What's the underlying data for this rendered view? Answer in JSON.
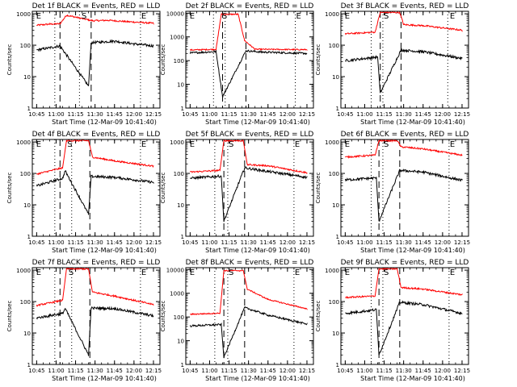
{
  "chart_data": [
    {
      "type": "line",
      "title": "Det 1f BLACK = Events, RED = LLD",
      "ylabel": "Counts/sec",
      "xlabel": "Start Time (12-Mar-09 10:41:40)",
      "x_ticks": [
        "10:45",
        "11:00",
        "11:15",
        "11:30",
        "11:45",
        "12:00",
        "12:15"
      ],
      "y_ticks": [
        "1",
        "10",
        "100",
        "1000"
      ],
      "ylim": [
        1,
        1200
      ],
      "yscale": "log",
      "markers": {
        "E1": "E",
        "S": "S",
        "E2": "E"
      },
      "marker_times": [
        "10:44",
        "11:19",
        "12:05"
      ],
      "dashed_times": [
        "11:03",
        "11:27"
      ],
      "dotted_times": [
        "10:59",
        "11:18",
        "12:05"
      ],
      "series": [
        {
          "color": "#ff0000",
          "values": [
            {
              "t": "10:45",
              "v": 430
            },
            {
              "t": "10:55",
              "v": 470
            },
            {
              "t": "11:03",
              "v": 480
            },
            {
              "t": "11:08",
              "v": 900
            },
            {
              "t": "11:28",
              "v": 600
            },
            {
              "t": "11:40",
              "v": 620
            },
            {
              "t": "11:55",
              "v": 560
            },
            {
              "t": "12:15",
              "v": 500
            }
          ]
        },
        {
          "color": "#000000",
          "values": [
            {
              "t": "10:45",
              "v": 70
            },
            {
              "t": "11:00",
              "v": 90
            },
            {
              "t": "11:03",
              "v": 95
            },
            {
              "t": "11:25",
              "v": 5
            },
            {
              "t": "11:27",
              "v": 120
            },
            {
              "t": "11:45",
              "v": 135
            },
            {
              "t": "12:00",
              "v": 110
            },
            {
              "t": "12:15",
              "v": 95
            }
          ]
        }
      ]
    },
    {
      "type": "line",
      "title": "Det 2f BLACK = Events, RED = LLD",
      "ylabel": "Counts/sec",
      "xlabel": "Start Time (12-Mar-09 10:41:40)",
      "x_ticks": [
        "10:45",
        "11:00",
        "11:15",
        "11:30",
        "11:45",
        "12:00",
        "12:15"
      ],
      "y_ticks": [
        "1",
        "10",
        "100",
        "1000",
        "10000"
      ],
      "ylim": [
        1,
        12000
      ],
      "yscale": "log",
      "markers": {
        "E1": "E",
        "S": "S",
        "E2": "E"
      },
      "marker_times": [
        "10:44",
        "11:09",
        "12:06"
      ],
      "dashed_times": [
        "11:10",
        "11:28"
      ],
      "dotted_times": [
        "11:03",
        "11:12",
        "12:06"
      ],
      "series": [
        {
          "color": "#ff0000",
          "values": [
            {
              "t": "10:45",
              "v": 280
            },
            {
              "t": "11:05",
              "v": 300
            },
            {
              "t": "11:09",
              "v": 9000
            },
            {
              "t": "11:22",
              "v": 9000
            },
            {
              "t": "11:27",
              "v": 700
            },
            {
              "t": "11:35",
              "v": 300
            },
            {
              "t": "12:15",
              "v": 290
            }
          ]
        },
        {
          "color": "#000000",
          "values": [
            {
              "t": "10:45",
              "v": 210
            },
            {
              "t": "11:05",
              "v": 240
            },
            {
              "t": "11:10",
              "v": 3
            },
            {
              "t": "11:28",
              "v": 260
            },
            {
              "t": "11:40",
              "v": 230
            },
            {
              "t": "12:15",
              "v": 200
            }
          ]
        }
      ]
    },
    {
      "type": "line",
      "title": "Det 3f BLACK = Events, RED = LLD",
      "ylabel": "Counts/sec",
      "xlabel": "Start Time (12-Mar-09 10:41:40)",
      "x_ticks": [
        "10:45",
        "11:00",
        "11:15",
        "11:30",
        "11:45",
        "12:00",
        "12:15"
      ],
      "y_ticks": [
        "1",
        "10",
        "100",
        "1000"
      ],
      "ylim": [
        1,
        1200
      ],
      "yscale": "log",
      "markers": {
        "E1": "E",
        "S": "S",
        "E2": "E"
      },
      "marker_times": [
        "10:44",
        "11:14",
        "12:05"
      ],
      "dashed_times": [
        "11:12",
        "11:28"
      ],
      "dotted_times": [
        "11:05",
        "11:14",
        "12:04"
      ],
      "series": [
        {
          "color": "#ff0000",
          "values": [
            {
              "t": "10:45",
              "v": 230
            },
            {
              "t": "11:08",
              "v": 260
            },
            {
              "t": "11:12",
              "v": 1100
            },
            {
              "t": "11:27",
              "v": 1100
            },
            {
              "t": "11:30",
              "v": 450
            },
            {
              "t": "11:45",
              "v": 420
            },
            {
              "t": "12:15",
              "v": 300
            }
          ]
        },
        {
          "color": "#000000",
          "values": [
            {
              "t": "10:45",
              "v": 32
            },
            {
              "t": "11:10",
              "v": 42
            },
            {
              "t": "11:12",
              "v": 3
            },
            {
              "t": "11:28",
              "v": 70
            },
            {
              "t": "11:45",
              "v": 62
            },
            {
              "t": "12:15",
              "v": 38
            }
          ]
        }
      ]
    },
    {
      "type": "line",
      "title": "Det 4f BLACK = Events, RED = LLD",
      "ylabel": "Counts/sec",
      "xlabel": "Start Time (12-Mar-09 10:41:40)",
      "x_ticks": [
        "10:45",
        "11:00",
        "11:15",
        "11:30",
        "11:45",
        "12:00",
        "12:15"
      ],
      "y_ticks": [
        "1",
        "10",
        "100",
        "1000"
      ],
      "ylim": [
        1,
        1200
      ],
      "yscale": "log",
      "markers": {
        "E1": "E",
        "S": "S",
        "E2": "E"
      },
      "marker_times": [
        "10:44",
        "11:08",
        "12:05"
      ],
      "dashed_times": [
        "11:03",
        "11:26"
      ],
      "dotted_times": [
        "10:59",
        "11:12",
        "12:05"
      ],
      "series": [
        {
          "color": "#ff0000",
          "values": [
            {
              "t": "10:45",
              "v": 95
            },
            {
              "t": "11:05",
              "v": 150
            },
            {
              "t": "11:08",
              "v": 1100
            },
            {
              "t": "11:25",
              "v": 1100
            },
            {
              "t": "11:28",
              "v": 330
            },
            {
              "t": "11:45",
              "v": 250
            },
            {
              "t": "12:15",
              "v": 170
            }
          ]
        },
        {
          "color": "#000000",
          "values": [
            {
              "t": "10:45",
              "v": 40
            },
            {
              "t": "11:05",
              "v": 70
            },
            {
              "t": "11:07",
              "v": 120
            },
            {
              "t": "11:25",
              "v": 5
            },
            {
              "t": "11:27",
              "v": 80
            },
            {
              "t": "11:45",
              "v": 75
            },
            {
              "t": "12:15",
              "v": 52
            }
          ]
        }
      ]
    },
    {
      "type": "line",
      "title": "Det 5f BLACK = Events, RED = LLD",
      "ylabel": "Counts/sec",
      "xlabel": "Start Time (12-Mar-09 10:41:40)",
      "x_ticks": [
        "10:45",
        "11:00",
        "11:15",
        "11:30",
        "11:45",
        "12:00",
        "12:15"
      ],
      "y_ticks": [
        "1",
        "10",
        "100",
        "1000"
      ],
      "ylim": [
        1,
        1200
      ],
      "yscale": "log",
      "markers": {
        "E1": "E",
        "S": "S",
        "E2": "E"
      },
      "marker_times": [
        "10:44",
        "11:14",
        "12:05"
      ],
      "dashed_times": [
        "11:11",
        "11:27"
      ],
      "dotted_times": [
        "11:04",
        "11:14",
        "12:05"
      ],
      "series": [
        {
          "color": "#ff0000",
          "values": [
            {
              "t": "10:45",
              "v": 110
            },
            {
              "t": "11:08",
              "v": 125
            },
            {
              "t": "11:11",
              "v": 1100
            },
            {
              "t": "11:26",
              "v": 1100
            },
            {
              "t": "11:29",
              "v": 190
            },
            {
              "t": "11:45",
              "v": 175
            },
            {
              "t": "12:15",
              "v": 105
            }
          ]
        },
        {
          "color": "#000000",
          "values": [
            {
              "t": "10:45",
              "v": 70
            },
            {
              "t": "11:09",
              "v": 82
            },
            {
              "t": "11:11",
              "v": 3
            },
            {
              "t": "11:27",
              "v": 150
            },
            {
              "t": "11:45",
              "v": 115
            },
            {
              "t": "12:15",
              "v": 75
            }
          ]
        }
      ]
    },
    {
      "type": "line",
      "title": "Det 6f BLACK = Events, RED = LLD",
      "ylabel": "Counts/sec",
      "xlabel": "Start Time (12-Mar-09 10:41:40)",
      "x_ticks": [
        "10:45",
        "11:00",
        "11:15",
        "11:30",
        "11:45",
        "12:00",
        "12:15"
      ],
      "y_ticks": [
        "1",
        "10",
        "100",
        "1000"
      ],
      "ylim": [
        1,
        1200
      ],
      "yscale": "log",
      "markers": {
        "E1": "E",
        "S": "S",
        "E2": "E"
      },
      "marker_times": [
        "10:44",
        "11:14",
        "12:05"
      ],
      "dashed_times": [
        "11:11",
        "11:27"
      ],
      "dotted_times": [
        "11:05",
        "11:14",
        "12:05"
      ],
      "series": [
        {
          "color": "#ff0000",
          "values": [
            {
              "t": "10:45",
              "v": 330
            },
            {
              "t": "11:08",
              "v": 380
            },
            {
              "t": "11:11",
              "v": 1100
            },
            {
              "t": "11:25",
              "v": 1100
            },
            {
              "t": "11:28",
              "v": 700
            },
            {
              "t": "11:45",
              "v": 600
            },
            {
              "t": "12:15",
              "v": 380
            }
          ]
        },
        {
          "color": "#000000",
          "values": [
            {
              "t": "10:45",
              "v": 62
            },
            {
              "t": "11:09",
              "v": 72
            },
            {
              "t": "11:11",
              "v": 3
            },
            {
              "t": "11:27",
              "v": 125
            },
            {
              "t": "11:45",
              "v": 110
            },
            {
              "t": "12:15",
              "v": 60
            }
          ]
        }
      ]
    },
    {
      "type": "line",
      "title": "Det 7f BLACK = Events, RED = LLD",
      "ylabel": "Counts/sec",
      "xlabel": "Start Time (12-Mar-09 10:41:40)",
      "x_ticks": [
        "10:45",
        "11:00",
        "11:15",
        "11:30",
        "11:45",
        "12:00",
        "12:15"
      ],
      "y_ticks": [
        "1",
        "10",
        "100",
        "1000"
      ],
      "ylim": [
        1,
        1200
      ],
      "yscale": "log",
      "markers": {
        "E1": "E",
        "S": "S",
        "E2": "E"
      },
      "marker_times": [
        "10:44",
        "11:09",
        "12:05"
      ],
      "dashed_times": [
        "11:03",
        "11:26"
      ],
      "dotted_times": [
        "10:59",
        "11:12",
        "12:05"
      ],
      "series": [
        {
          "color": "#ff0000",
          "values": [
            {
              "t": "10:45",
              "v": 75
            },
            {
              "t": "11:05",
              "v": 110
            },
            {
              "t": "11:08",
              "v": 1100
            },
            {
              "t": "11:25",
              "v": 1100
            },
            {
              "t": "11:28",
              "v": 200
            },
            {
              "t": "11:45",
              "v": 150
            },
            {
              "t": "12:15",
              "v": 80
            }
          ]
        },
        {
          "color": "#000000",
          "values": [
            {
              "t": "10:45",
              "v": 30
            },
            {
              "t": "11:05",
              "v": 42
            },
            {
              "t": "11:07",
              "v": 60
            },
            {
              "t": "11:25",
              "v": 2
            },
            {
              "t": "11:27",
              "v": 62
            },
            {
              "t": "11:45",
              "v": 60
            },
            {
              "t": "12:15",
              "v": 35
            }
          ]
        }
      ]
    },
    {
      "type": "line",
      "title": "Det 8f BLACK = Events, RED = LLD",
      "ylabel": "Counts/sec",
      "xlabel": "Start Time (12-Mar-09 10:41:40)",
      "x_ticks": [
        "10:45",
        "11:00",
        "11:15",
        "11:30",
        "11:45",
        "12:00",
        "12:15"
      ],
      "y_ticks": [
        "1",
        "10",
        "100",
        "1000",
        "10000"
      ],
      "ylim": [
        1,
        12000
      ],
      "yscale": "log",
      "markers": {
        "E1": "E",
        "S": "S",
        "E2": "E"
      },
      "marker_times": [
        "10:44",
        "11:14",
        "12:05"
      ],
      "dashed_times": [
        "11:11",
        "11:27"
      ],
      "dotted_times": [
        "11:04",
        "11:14",
        "12:05"
      ],
      "series": [
        {
          "color": "#ff0000",
          "values": [
            {
              "t": "10:45",
              "v": 130
            },
            {
              "t": "11:08",
              "v": 145
            },
            {
              "t": "11:11",
              "v": 9000
            },
            {
              "t": "11:26",
              "v": 9000
            },
            {
              "t": "11:29",
              "v": 1500
            },
            {
              "t": "11:45",
              "v": 550
            },
            {
              "t": "12:15",
              "v": 220
            }
          ]
        },
        {
          "color": "#000000",
          "values": [
            {
              "t": "10:45",
              "v": 42
            },
            {
              "t": "11:09",
              "v": 48
            },
            {
              "t": "11:11",
              "v": 2
            },
            {
              "t": "11:27",
              "v": 250
            },
            {
              "t": "11:45",
              "v": 120
            },
            {
              "t": "12:15",
              "v": 50
            }
          ]
        }
      ]
    },
    {
      "type": "line",
      "title": "Det 9f BLACK = Events, RED = LLD",
      "ylabel": "Counts/sec",
      "xlabel": "Start Time (12-Mar-09 10:41:40)",
      "x_ticks": [
        "10:45",
        "11:00",
        "11:15",
        "11:30",
        "11:45",
        "12:00",
        "12:15"
      ],
      "y_ticks": [
        "1",
        "10",
        "100",
        "1000"
      ],
      "ylim": [
        1,
        1200
      ],
      "yscale": "log",
      "markers": {
        "E1": "E",
        "S": "S",
        "E2": "E"
      },
      "marker_times": [
        "10:44",
        "11:14",
        "12:05"
      ],
      "dashed_times": [
        "11:11",
        "11:27"
      ],
      "dotted_times": [
        "11:05",
        "11:14",
        "12:05"
      ],
      "series": [
        {
          "color": "#ff0000",
          "values": [
            {
              "t": "10:45",
              "v": 135
            },
            {
              "t": "11:08",
              "v": 150
            },
            {
              "t": "11:11",
              "v": 1100
            },
            {
              "t": "11:25",
              "v": 1100
            },
            {
              "t": "11:28",
              "v": 280
            },
            {
              "t": "11:45",
              "v": 250
            },
            {
              "t": "12:15",
              "v": 165
            }
          ]
        },
        {
          "color": "#000000",
          "values": [
            {
              "t": "10:45",
              "v": 42
            },
            {
              "t": "11:09",
              "v": 55
            },
            {
              "t": "11:11",
              "v": 2
            },
            {
              "t": "11:27",
              "v": 95
            },
            {
              "t": "11:45",
              "v": 80
            },
            {
              "t": "12:15",
              "v": 42
            }
          ]
        }
      ]
    }
  ]
}
